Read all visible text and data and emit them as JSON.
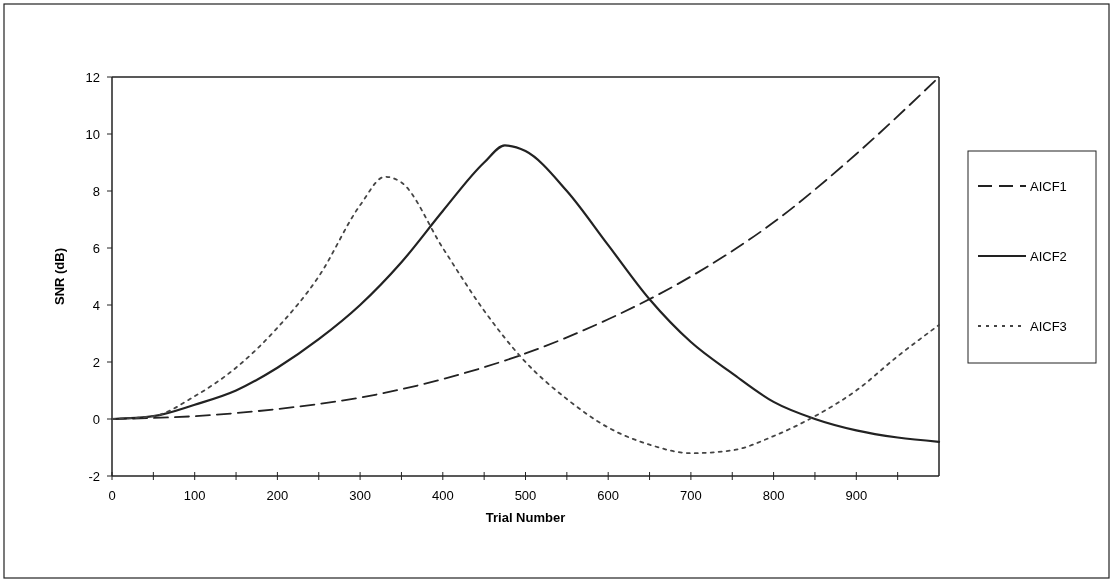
{
  "chart_data": {
    "type": "line",
    "xlabel": "Trial Number",
    "ylabel": "SNR (dB)",
    "xlim": [
      0,
      1000
    ],
    "xticks": [
      0,
      {
        "value": 50,
        "label": null
      },
      100,
      {
        "value": 150,
        "label": null
      },
      200,
      {
        "value": 250,
        "label": null
      },
      300,
      {
        "value": 350,
        "label": null
      },
      400,
      {
        "value": 450,
        "label": null
      },
      500,
      {
        "value": 550,
        "label": null
      },
      600,
      {
        "value": 650,
        "label": null
      },
      700,
      {
        "value": 750,
        "label": null
      },
      800,
      {
        "value": 850,
        "label": null
      },
      900,
      {
        "value": 950,
        "label": null
      }
    ],
    "ylim": [
      -2,
      12
    ],
    "yticks": [
      -2,
      0,
      2,
      4,
      6,
      8,
      10,
      12
    ],
    "legend": "right",
    "marker": "none",
    "series": [
      {
        "name": "AICF1",
        "color": "#222222",
        "line_style": "dashed",
        "x": [
          0,
          100,
          200,
          300,
          400,
          500,
          600,
          700,
          800,
          900,
          1000
        ],
        "values": [
          0,
          0.1,
          0.35,
          0.75,
          1.4,
          2.3,
          3.5,
          5.0,
          6.9,
          9.3,
          12
        ]
      },
      {
        "name": "AICF2",
        "color": "#222222",
        "line_style": "solid",
        "x": [
          0,
          50,
          100,
          150,
          200,
          250,
          300,
          350,
          400,
          450,
          475,
          500,
          550,
          600,
          650,
          700,
          750,
          800,
          850,
          900,
          950,
          1000
        ],
        "values": [
          0,
          0.1,
          0.5,
          1.0,
          1.8,
          2.8,
          4.0,
          5.5,
          7.3,
          9.0,
          9.6,
          9.4,
          8.0,
          6.1,
          4.2,
          2.7,
          1.6,
          0.6,
          0,
          -0.4,
          -0.65,
          -0.8
        ]
      },
      {
        "name": "AICF3",
        "color": "#444444",
        "line_style": "dotted",
        "x": [
          0,
          50,
          100,
          150,
          200,
          250,
          300,
          330,
          350,
          400,
          450,
          500,
          550,
          600,
          650,
          700,
          750,
          800,
          850,
          900,
          950,
          1000
        ],
        "values": [
          0,
          0.1,
          0.8,
          1.8,
          3.2,
          5.0,
          7.5,
          8.5,
          8.3,
          6.0,
          3.8,
          2.0,
          0.7,
          -0.3,
          -0.9,
          -1.2,
          -1.1,
          -0.6,
          0.1,
          1.0,
          2.2,
          3.3
        ]
      }
    ]
  }
}
